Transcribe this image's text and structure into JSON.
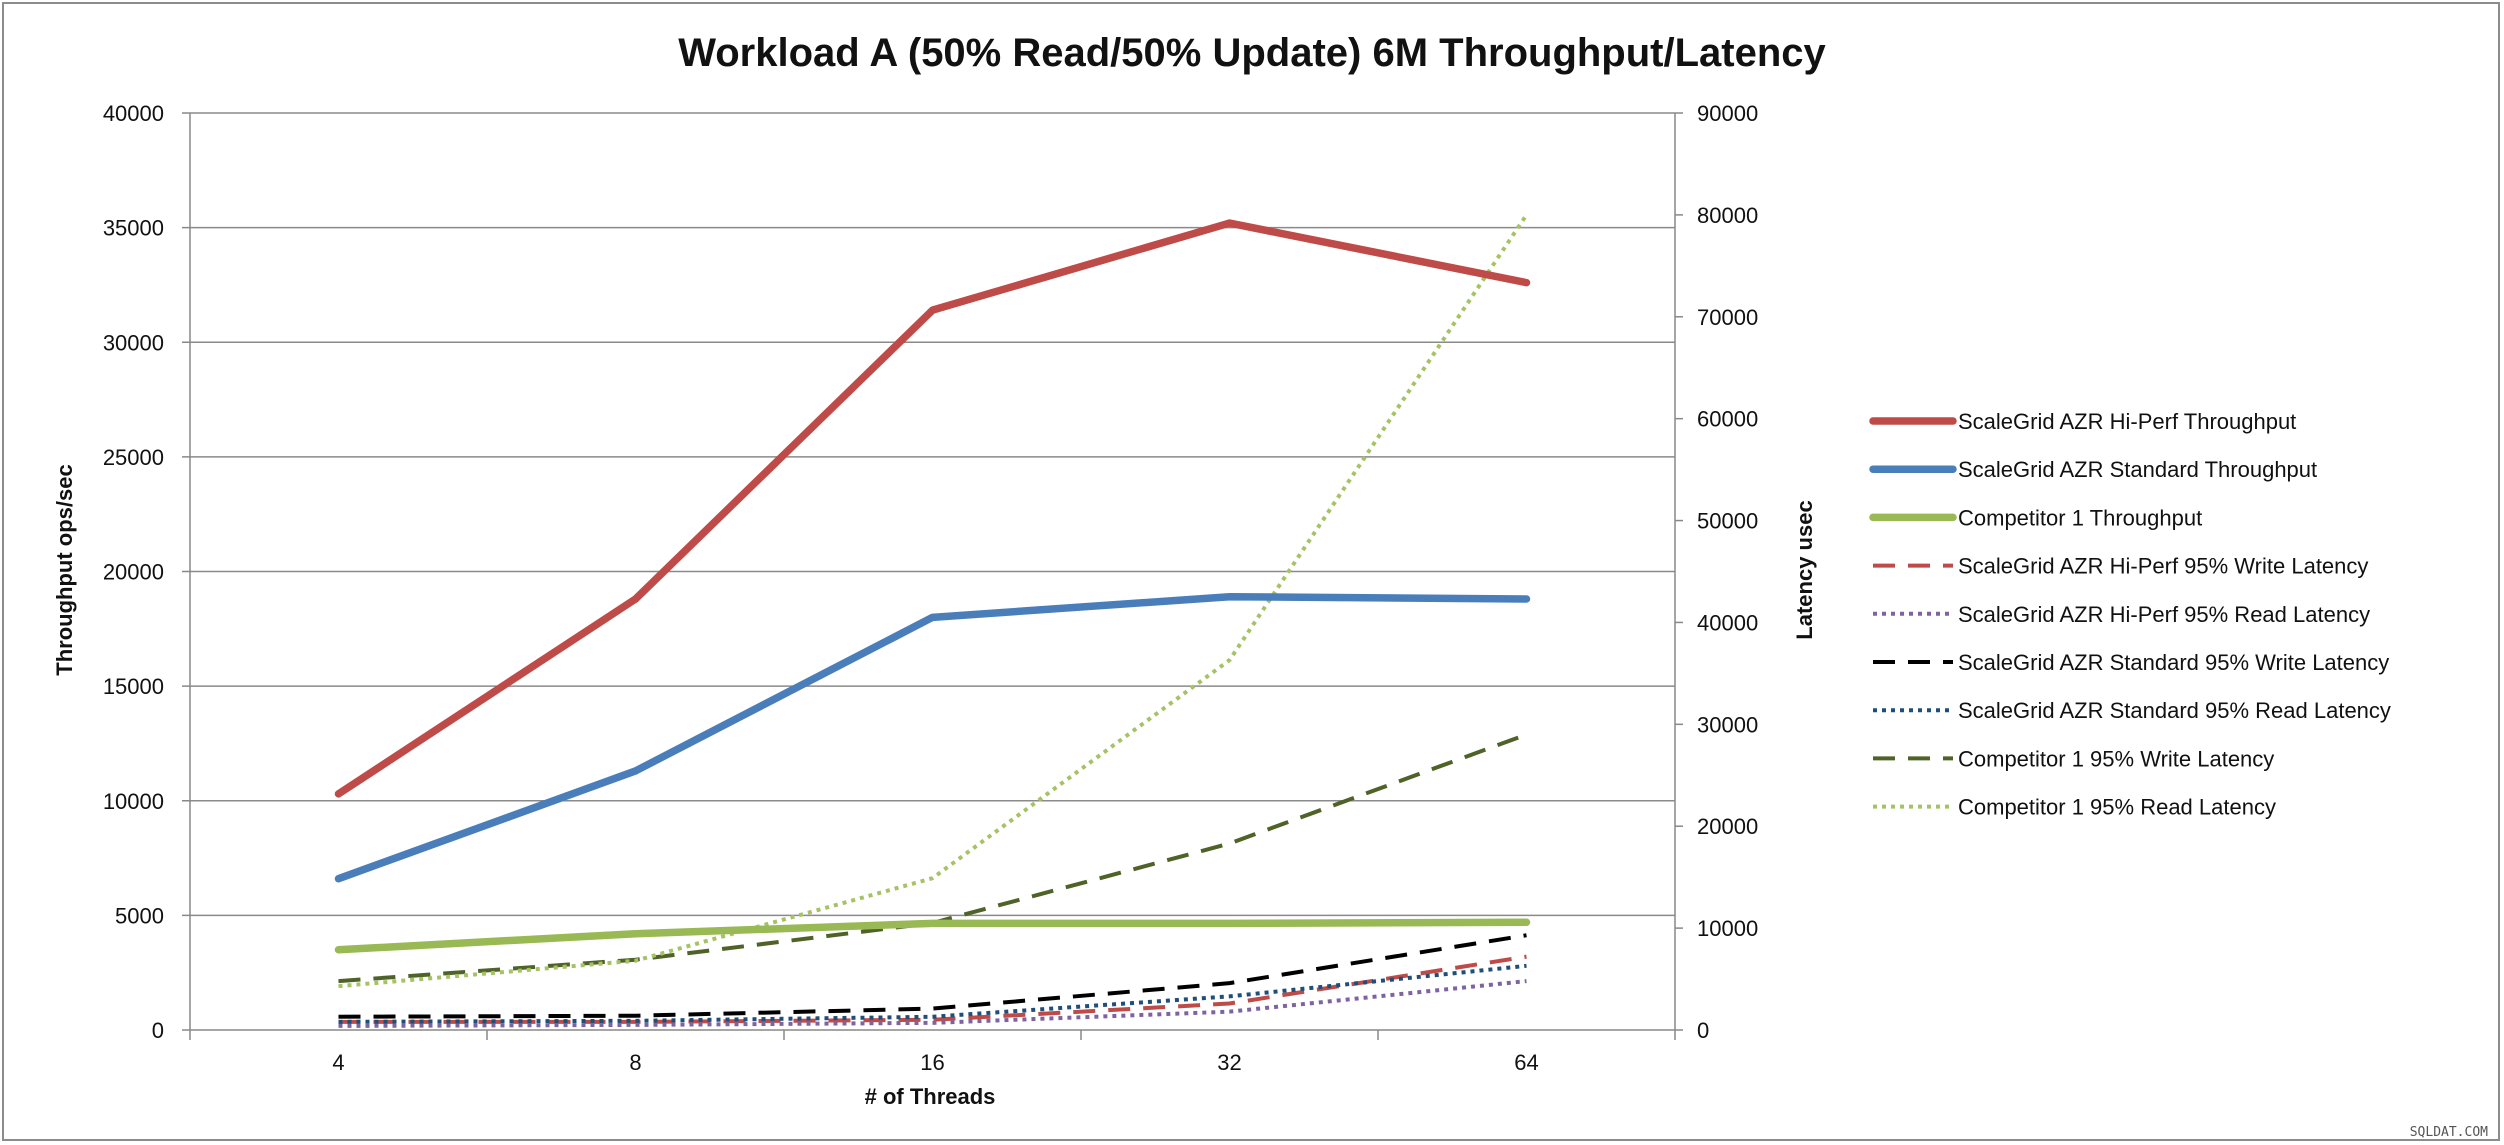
{
  "chart_data": {
    "type": "line",
    "title": "Workload A (50% Read/50% Update) 6M Throughput/Latency",
    "xlabel": "# of Threads",
    "ylabel_left": "Throughput ops/sec",
    "ylabel_right": "Latency usec",
    "categories": [
      "4",
      "8",
      "16",
      "32",
      "64"
    ],
    "ylim_left": [
      0,
      40000
    ],
    "ylim_right": [
      0,
      90000
    ],
    "yticks_left": [
      "0",
      "5000",
      "10000",
      "15000",
      "20000",
      "25000",
      "30000",
      "35000",
      "40000"
    ],
    "yticks_right": [
      "0",
      "10000",
      "20000",
      "30000",
      "40000",
      "50000",
      "60000",
      "70000",
      "80000",
      "90000"
    ],
    "grid": true,
    "legend_position": "right",
    "series": [
      {
        "name": "ScaleGrid AZR Hi-Perf Throughput",
        "axis": "left",
        "style": "solid-thick",
        "color": "#be4b48",
        "values": [
          10300,
          18800,
          31400,
          35200,
          32600
        ]
      },
      {
        "name": "ScaleGrid AZR Standard Throughput",
        "axis": "left",
        "style": "solid-thick",
        "color": "#4a7ebb",
        "values": [
          6600,
          11300,
          18000,
          18900,
          18800
        ]
      },
      {
        "name": "Competitor 1 Throughput",
        "axis": "left",
        "style": "solid-thick",
        "color": "#98b954",
        "values": [
          3500,
          4200,
          4650,
          4650,
          4700
        ]
      },
      {
        "name": "ScaleGrid AZR Hi-Perf 95% Write Latency",
        "axis": "right",
        "style": "dashed",
        "color": "#be4b48",
        "values": [
          800,
          800,
          1000,
          2600,
          7200
        ]
      },
      {
        "name": "ScaleGrid AZR Hi-Perf 95% Read Latency",
        "axis": "right",
        "style": "dotted",
        "color": "#7f63a1",
        "values": [
          400,
          500,
          700,
          1800,
          4800
        ]
      },
      {
        "name": "ScaleGrid AZR Standard 95% Write Latency",
        "axis": "right",
        "style": "dashed",
        "color": "#000000",
        "values": [
          1300,
          1400,
          2100,
          4600,
          9300
        ]
      },
      {
        "name": "ScaleGrid AZR Standard 95% Read Latency",
        "axis": "right",
        "style": "dotted",
        "color": "#1f4e79",
        "values": [
          800,
          900,
          1300,
          3300,
          6300
        ]
      },
      {
        "name": "Competitor 1 95% Write Latency",
        "axis": "right",
        "style": "dashed",
        "color": "#4f6228",
        "values": [
          4800,
          6900,
          10500,
          18300,
          29000
        ]
      },
      {
        "name": "Competitor 1 95% Read Latency",
        "axis": "right",
        "style": "dotted",
        "color": "#a5c364",
        "values": [
          4300,
          6800,
          14900,
          36300,
          80000
        ]
      }
    ]
  },
  "watermark": "SQLDAT.COM"
}
